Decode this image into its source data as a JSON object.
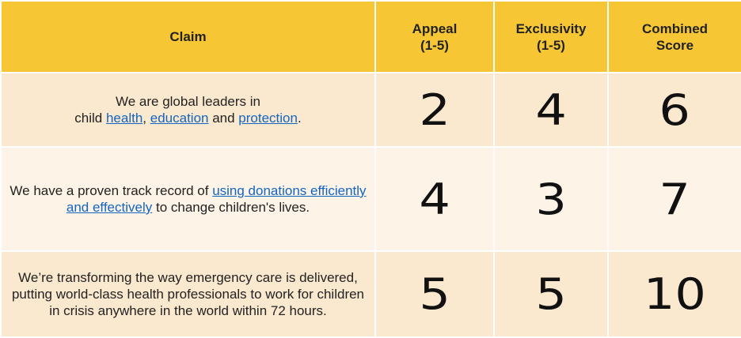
{
  "headers": {
    "claim": "Claim",
    "appeal": "Appeal",
    "appeal_range": "(1-5)",
    "exclusivity": "Exclusivity",
    "exclusivity_range": "(1-5)",
    "combined": "Combined",
    "combined2": "Score"
  },
  "rows": [
    {
      "claim_a": "We are global leaders in",
      "claim_b": "child ",
      "link1": "health",
      "sep1": ", ",
      "link2": "education",
      "sep2": " and ",
      "link3": "protection",
      "end": ".",
      "appeal": "2",
      "exclusivity": "4",
      "combined": "6"
    },
    {
      "claim_a": "We have a proven track record of ",
      "link1": "using donations efficiently and effectively",
      "claim_b": " to change children's lives.",
      "appeal": "4",
      "exclusivity": "3",
      "combined": "7"
    },
    {
      "claim": "We’re transforming the way emergency care is delivered, putting world-class health professionals to work for children in crisis anywhere in the world within 72 hours.",
      "appeal": "5",
      "exclusivity": "5",
      "combined": "10"
    }
  ],
  "colors": {
    "header": "#f6c634",
    "row_odd": "#fbe9cf",
    "row_even": "#fdf4e7",
    "link": "#1565c0"
  }
}
